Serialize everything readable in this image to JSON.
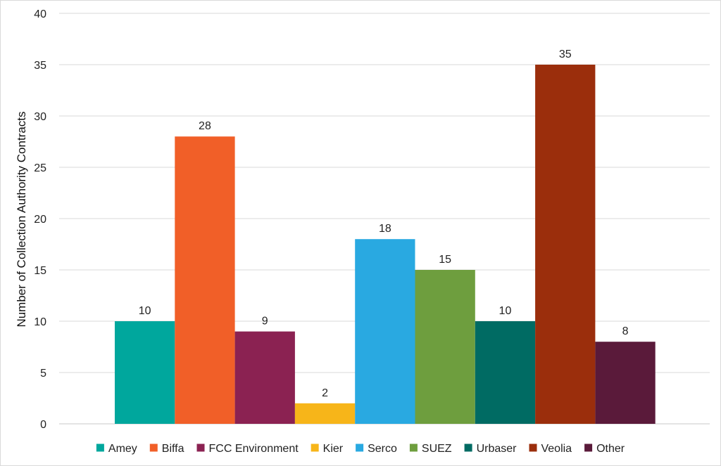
{
  "chart_data": {
    "type": "bar",
    "title": "",
    "xlabel": "",
    "ylabel": "Number of Collection Authority Contracts",
    "ylim": [
      0,
      40
    ],
    "yticks": [
      0,
      5,
      10,
      15,
      20,
      25,
      30,
      35,
      40
    ],
    "grid": true,
    "legend_position": "bottom",
    "categories": [
      "Amey",
      "Biffa",
      "FCC Environment",
      "Kier",
      "Serco",
      "SUEZ",
      "Urbaser",
      "Veolia",
      "Other"
    ],
    "values": [
      10,
      28,
      9,
      2,
      18,
      15,
      10,
      35,
      8
    ],
    "colors": [
      "#00A79D",
      "#F15F28",
      "#8B2252",
      "#F7B519",
      "#29A9E1",
      "#6E9E3E",
      "#006B63",
      "#9B2E0C",
      "#5A1A3A"
    ]
  }
}
